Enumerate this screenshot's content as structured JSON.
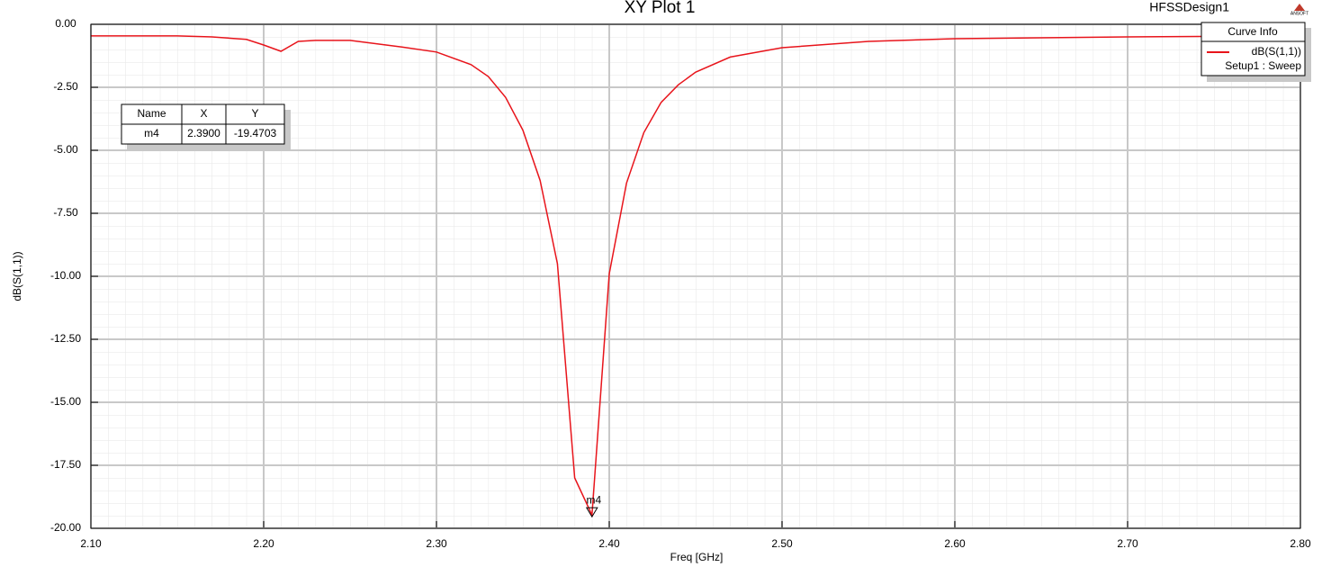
{
  "chart_data": {
    "type": "line",
    "title": "XY Plot 1",
    "design_name": "HFSSDesign1",
    "logo_text": "ANSOFT",
    "x_label": "Freq [GHz]",
    "y_label": "dB(S(1,1))",
    "x": [
      2.1,
      2.15,
      2.17,
      2.19,
      2.2,
      2.21,
      2.22,
      2.23,
      2.25,
      2.28,
      2.3,
      2.32,
      2.33,
      2.34,
      2.35,
      2.36,
      2.37,
      2.38,
      2.39,
      2.4,
      2.41,
      2.42,
      2.43,
      2.44,
      2.45,
      2.47,
      2.5,
      2.55,
      2.6,
      2.7,
      2.8
    ],
    "series": [
      {
        "name": "dB(S(1,1))",
        "color": "#e8141b",
        "values": [
          -0.46,
          -0.46,
          -0.5,
          -0.6,
          -0.82,
          -1.07,
          -0.68,
          -0.64,
          -0.64,
          -0.9,
          -1.1,
          -1.6,
          -2.07,
          -2.9,
          -4.2,
          -6.2,
          -9.5,
          -18.0,
          -19.4703,
          -9.9,
          -6.3,
          -4.3,
          -3.1,
          -2.4,
          -1.9,
          -1.3,
          -0.93,
          -0.68,
          -0.57,
          -0.5,
          -0.46
        ]
      }
    ],
    "legend_title": "Curve Info",
    "legend_subtitle": "Setup1 : Sweep",
    "legend_position": "upper right",
    "xlim": [
      2.1,
      2.8
    ],
    "xticks": [
      {
        "value": 2.1,
        "label": "2.10"
      },
      {
        "value": 2.2,
        "label": "2.20"
      },
      {
        "value": 2.3,
        "label": "2.30"
      },
      {
        "value": 2.4,
        "label": "2.40"
      },
      {
        "value": 2.5,
        "label": "2.50"
      },
      {
        "value": 2.6,
        "label": "2.60"
      },
      {
        "value": 2.7,
        "label": "2.70"
      },
      {
        "value": 2.8,
        "label": "2.80"
      }
    ],
    "ylim": [
      -20,
      0
    ],
    "yticks": [
      {
        "value": 0,
        "label": "0.00"
      },
      {
        "value": -2.5,
        "label": "-2.50"
      },
      {
        "value": -5,
        "label": "-5.00"
      },
      {
        "value": -7.5,
        "label": "-7.50"
      },
      {
        "value": -10,
        "label": "-10.00"
      },
      {
        "value": -12.5,
        "label": "-12.50"
      },
      {
        "value": -15,
        "label": "-15.00"
      },
      {
        "value": -17.5,
        "label": "-17.50"
      },
      {
        "value": -20,
        "label": "-20.00"
      }
    ],
    "grid": true,
    "marker_table": {
      "headers": [
        "Name",
        "X",
        "Y"
      ],
      "rows": [
        [
          "m4",
          "2.3900",
          "-19.4703"
        ]
      ]
    }
  }
}
